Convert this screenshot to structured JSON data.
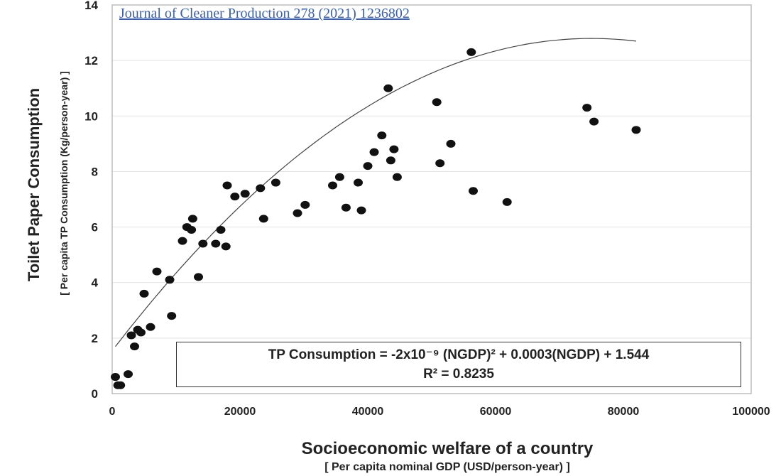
{
  "source_note": "Journal of Cleaner Production 278 (2021) 1236802",
  "equation": {
    "line1": "TP Consumption = -2x10⁻⁹ (NGDP)² + 0.0003(NGDP) + 1.544",
    "line2": "R² = 0.8235"
  },
  "chart_data": {
    "type": "scatter",
    "ylabel": "Toilet Paper Consumption",
    "ylabel_sub": "[ Per capita TP Consumption  (Kg/person-year) ]",
    "xlabel": "Socioeconomic welfare of a country",
    "xlabel_sub": "[ Per capita nominal GDP (USD/person-year)  ]",
    "xlim": [
      0,
      100000
    ],
    "ylim": [
      0,
      14
    ],
    "x_ticks": [
      0,
      20000,
      40000,
      60000,
      80000,
      100000
    ],
    "x_tick_labels": [
      "0",
      "20000",
      "40000",
      "60000",
      "80000",
      "100000"
    ],
    "y_ticks": [
      0,
      2,
      4,
      6,
      8,
      10,
      12,
      14
    ],
    "y_tick_labels": [
      "0",
      "2",
      "4",
      "6",
      "8",
      "10",
      "12",
      "14"
    ],
    "grid": "horizontal",
    "points": [
      {
        "x": 500,
        "y": 0.6
      },
      {
        "x": 900,
        "y": 0.3
      },
      {
        "x": 1300,
        "y": 0.3
      },
      {
        "x": 2500,
        "y": 0.7
      },
      {
        "x": 3000,
        "y": 2.1
      },
      {
        "x": 3500,
        "y": 1.7
      },
      {
        "x": 4000,
        "y": 2.3
      },
      {
        "x": 4500,
        "y": 2.2
      },
      {
        "x": 5000,
        "y": 3.6
      },
      {
        "x": 6000,
        "y": 2.4
      },
      {
        "x": 7000,
        "y": 4.4
      },
      {
        "x": 9000,
        "y": 4.1
      },
      {
        "x": 9300,
        "y": 2.8
      },
      {
        "x": 11000,
        "y": 5.5
      },
      {
        "x": 11700,
        "y": 6.0
      },
      {
        "x": 12400,
        "y": 5.9
      },
      {
        "x": 12600,
        "y": 6.3
      },
      {
        "x": 13500,
        "y": 4.2
      },
      {
        "x": 14200,
        "y": 5.4
      },
      {
        "x": 16200,
        "y": 5.4
      },
      {
        "x": 17000,
        "y": 5.9
      },
      {
        "x": 17800,
        "y": 5.3
      },
      {
        "x": 18000,
        "y": 7.5
      },
      {
        "x": 19200,
        "y": 7.1
      },
      {
        "x": 20800,
        "y": 7.2
      },
      {
        "x": 23200,
        "y": 7.4
      },
      {
        "x": 23700,
        "y": 6.3
      },
      {
        "x": 25600,
        "y": 7.6
      },
      {
        "x": 29000,
        "y": 6.5
      },
      {
        "x": 30200,
        "y": 6.8
      },
      {
        "x": 34500,
        "y": 7.5
      },
      {
        "x": 35600,
        "y": 7.8
      },
      {
        "x": 36600,
        "y": 6.7
      },
      {
        "x": 38500,
        "y": 7.6
      },
      {
        "x": 39000,
        "y": 6.6
      },
      {
        "x": 40000,
        "y": 8.2
      },
      {
        "x": 41000,
        "y": 8.7
      },
      {
        "x": 42200,
        "y": 9.3
      },
      {
        "x": 43200,
        "y": 11.0
      },
      {
        "x": 43600,
        "y": 8.4
      },
      {
        "x": 44100,
        "y": 8.8
      },
      {
        "x": 44600,
        "y": 7.8
      },
      {
        "x": 50800,
        "y": 10.5
      },
      {
        "x": 51300,
        "y": 8.3
      },
      {
        "x": 53000,
        "y": 9.0
      },
      {
        "x": 56200,
        "y": 12.3
      },
      {
        "x": 56500,
        "y": 7.3
      },
      {
        "x": 61800,
        "y": 6.9
      },
      {
        "x": 74300,
        "y": 10.3
      },
      {
        "x": 75400,
        "y": 9.8
      },
      {
        "x": 82000,
        "y": 9.5
      }
    ],
    "trendline": {
      "type": "polynomial",
      "coefficients": {
        "a": -2e-09,
        "b": 0.0003,
        "c": 1.544
      },
      "x_range": [
        500,
        82000
      ]
    }
  }
}
